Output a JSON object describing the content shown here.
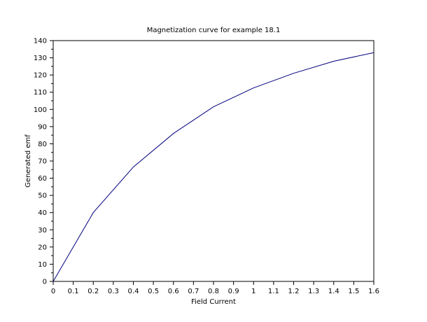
{
  "chart_data": {
    "type": "line",
    "title": "Magnetization curve for example 18.1",
    "xlabel": "Field Current",
    "ylabel": "Generated emf",
    "xlim": [
      0,
      1.6
    ],
    "ylim": [
      0,
      140
    ],
    "x_ticks": [
      "0",
      "0.1",
      "0.2",
      "0.3",
      "0.4",
      "0.5",
      "0.6",
      "0.7",
      "0.8",
      "0.9",
      "1",
      "1.1",
      "1.2",
      "1.3",
      "1.4",
      "1.5",
      "1.6"
    ],
    "y_ticks": [
      "0",
      "10",
      "20",
      "30",
      "40",
      "50",
      "60",
      "70",
      "80",
      "90",
      "100",
      "110",
      "120",
      "130",
      "140"
    ],
    "grid": false,
    "legend": "none",
    "series": [
      {
        "color": "#00007f",
        "x": [
          0,
          0.2,
          0.4,
          0.6,
          0.8,
          1.0,
          1.2,
          1.4,
          1.6
        ],
        "y": [
          0,
          40,
          66.5,
          86,
          101.5,
          112.5,
          121,
          128,
          133
        ]
      }
    ]
  }
}
